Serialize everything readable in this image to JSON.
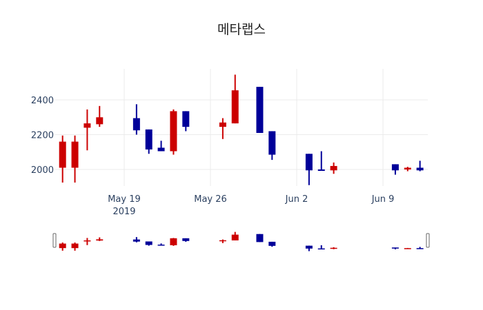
{
  "chart_data": {
    "type": "candlestick",
    "title": "메타랩스",
    "xlabel": "",
    "ylabel": "",
    "ylim": [
      1900,
      2580
    ],
    "yticks": [
      2000,
      2200,
      2400
    ],
    "xticks": [
      {
        "label": "May 19",
        "sublabel": "2019",
        "day": 19
      },
      {
        "label": "May 26",
        "sublabel": "",
        "day": 26
      },
      {
        "label": "Jun 2",
        "sublabel": "",
        "day": 33
      },
      {
        "label": "Jun 9",
        "sublabel": "",
        "day": 40
      }
    ],
    "colors": {
      "increasing": "#cc0000",
      "decreasing": "#000099"
    },
    "grid": true,
    "rangeslider": true,
    "candles": [
      {
        "date": "2019-05-14",
        "day": 14,
        "open": 2010,
        "high": 2195,
        "low": 1925,
        "close": 2160
      },
      {
        "date": "2019-05-15",
        "day": 15,
        "open": 2010,
        "high": 2195,
        "low": 1925,
        "close": 2160
      },
      {
        "date": "2019-05-16",
        "day": 16,
        "open": 2240,
        "high": 2345,
        "low": 2110,
        "close": 2265
      },
      {
        "date": "2019-05-17",
        "day": 17,
        "open": 2260,
        "high": 2365,
        "low": 2245,
        "close": 2300
      },
      {
        "date": "2019-05-20",
        "day": 20,
        "open": 2295,
        "high": 2375,
        "low": 2200,
        "close": 2225
      },
      {
        "date": "2019-05-21",
        "day": 21,
        "open": 2230,
        "high": 2230,
        "low": 2090,
        "close": 2115
      },
      {
        "date": "2019-05-22",
        "day": 22,
        "open": 2125,
        "high": 2165,
        "low": 2105,
        "close": 2105
      },
      {
        "date": "2019-05-23",
        "day": 23,
        "open": 2105,
        "high": 2345,
        "low": 2085,
        "close": 2335
      },
      {
        "date": "2019-05-24",
        "day": 24,
        "open": 2335,
        "high": 2335,
        "low": 2220,
        "close": 2245
      },
      {
        "date": "2019-05-27",
        "day": 27,
        "open": 2245,
        "high": 2295,
        "low": 2175,
        "close": 2270
      },
      {
        "date": "2019-05-28",
        "day": 28,
        "open": 2265,
        "high": 2545,
        "low": 2265,
        "close": 2455
      },
      {
        "date": "2019-05-30",
        "day": 30,
        "open": 2475,
        "high": 2475,
        "low": 2210,
        "close": 2210
      },
      {
        "date": "2019-05-31",
        "day": 31,
        "open": 2220,
        "high": 2220,
        "low": 2055,
        "close": 2085
      },
      {
        "date": "2019-06-03",
        "day": 34,
        "open": 2090,
        "high": 2090,
        "low": 1910,
        "close": 1995
      },
      {
        "date": "2019-06-04",
        "day": 35,
        "open": 2000,
        "high": 2105,
        "low": 1995,
        "close": 1995
      },
      {
        "date": "2019-06-05",
        "day": 36,
        "open": 1995,
        "high": 2040,
        "low": 1975,
        "close": 2020
      },
      {
        "date": "2019-06-10",
        "day": 41,
        "open": 2030,
        "high": 2030,
        "low": 1970,
        "close": 1995
      },
      {
        "date": "2019-06-11",
        "day": 42,
        "open": 2000,
        "high": 2015,
        "low": 1990,
        "close": 2010
      },
      {
        "date": "2019-06-12",
        "day": 43,
        "open": 2010,
        "high": 2050,
        "low": 1990,
        "close": 1995
      }
    ]
  }
}
